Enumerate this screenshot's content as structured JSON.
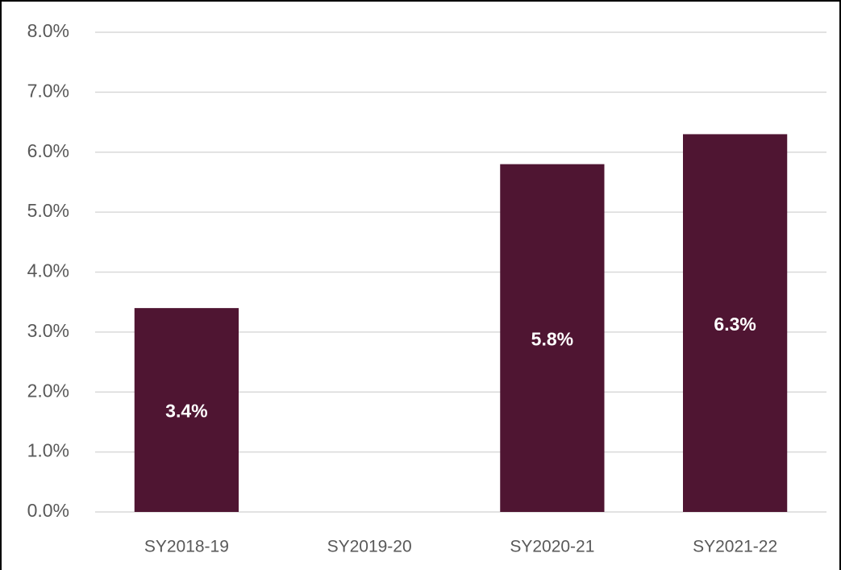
{
  "chart_data": {
    "type": "bar",
    "categories": [
      "SY2018-19",
      "SY2019-20",
      "SY2020-21",
      "SY2021-22"
    ],
    "values": [
      3.4,
      null,
      5.8,
      6.3
    ],
    "value_labels": [
      "3.4%",
      null,
      "5.8%",
      "6.3%"
    ],
    "color": "#4f1532",
    "ylim": [
      0,
      8
    ],
    "yticks": [
      {
        "value": 0,
        "label": "0.0%"
      },
      {
        "value": 1,
        "label": "1.0%"
      },
      {
        "value": 2,
        "label": "2.0%"
      },
      {
        "value": 3,
        "label": "3.0%"
      },
      {
        "value": 4,
        "label": "4.0%"
      },
      {
        "value": 5,
        "label": "5.0%"
      },
      {
        "value": 6,
        "label": "6.0%"
      },
      {
        "value": 7,
        "label": "7.0%"
      },
      {
        "value": 8,
        "label": "8.0%"
      }
    ],
    "grid": true
  }
}
